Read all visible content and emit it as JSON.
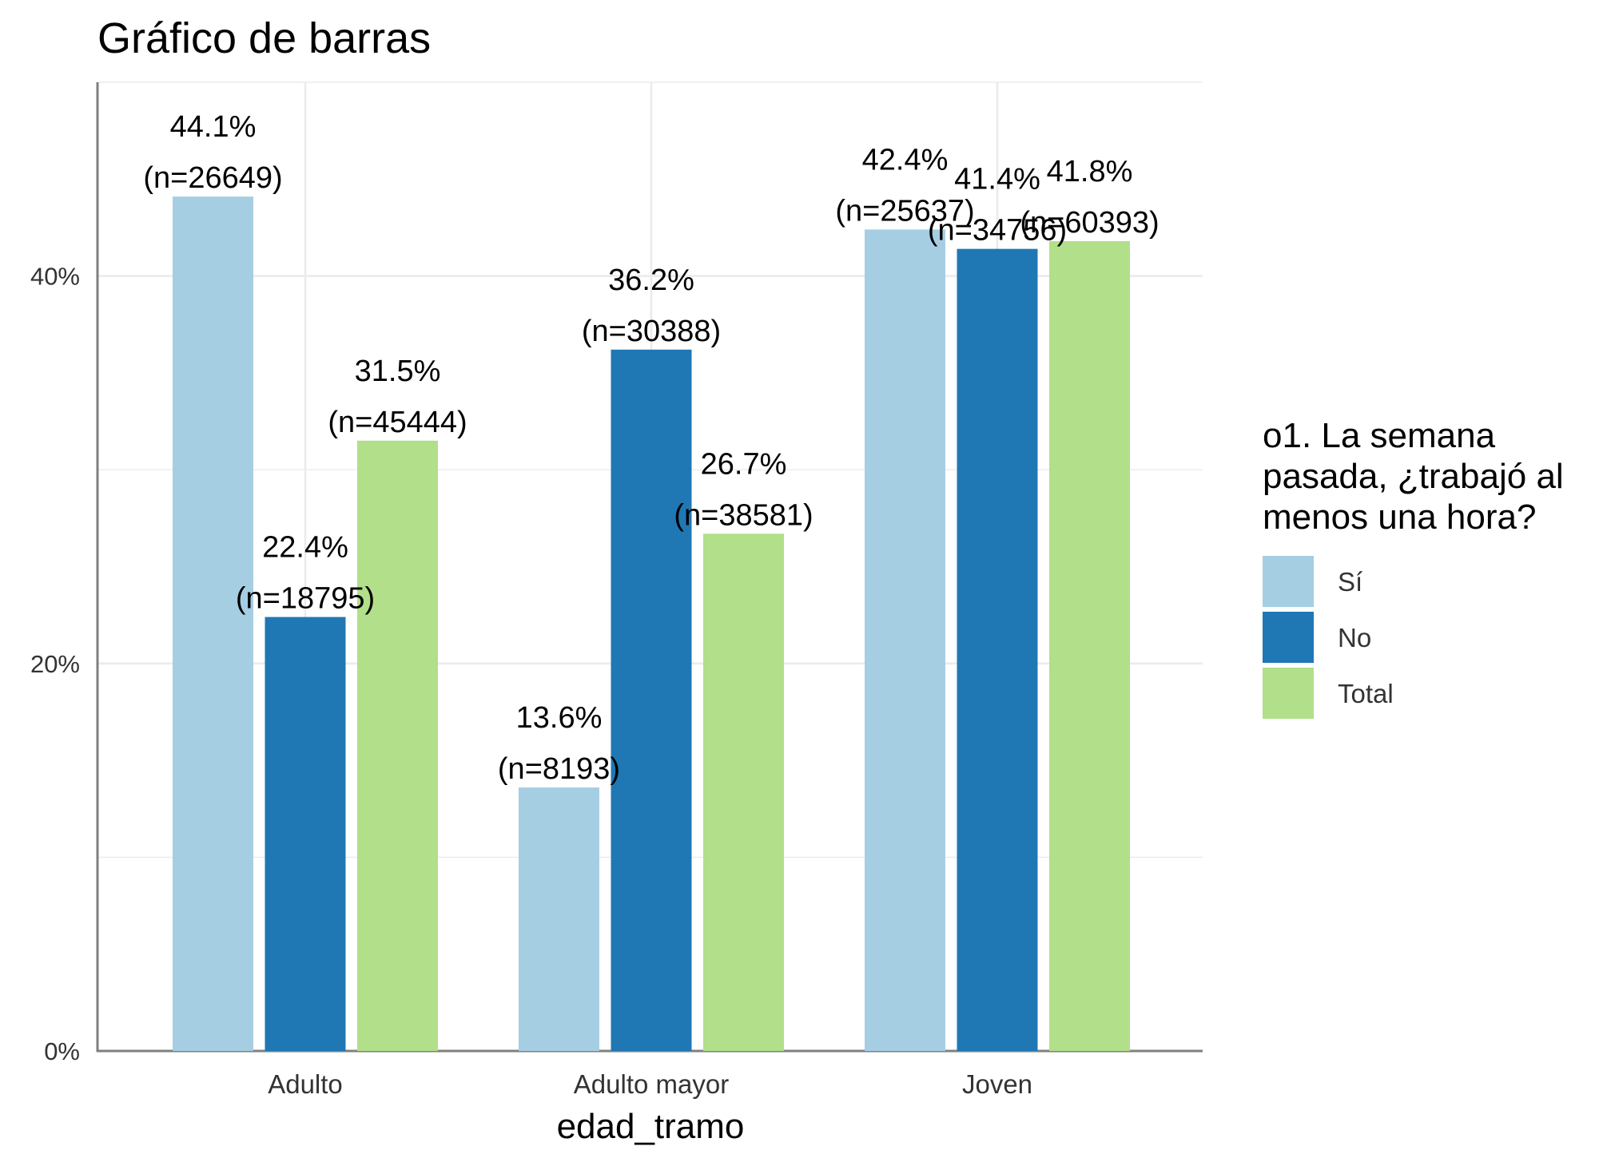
{
  "chart_data": {
    "type": "bar",
    "title": "Gráfico de barras",
    "xlabel": "edad_tramo",
    "ylabel": "",
    "ylim": [
      0,
      50
    ],
    "y_ticks": [
      0,
      20,
      40
    ],
    "y_tick_labels": [
      "0%",
      "20%",
      "40%"
    ],
    "categories": [
      "Adulto",
      "Adulto mayor",
      "Joven"
    ],
    "series": [
      {
        "name": "Sí",
        "color": "#a6cee3",
        "values": [
          44.1,
          13.6,
          42.4
        ],
        "labels": [
          "44.1%",
          "13.6%",
          "42.4%"
        ],
        "n_labels": [
          "(n=26649)",
          "(n=8193)",
          "(n=25637)"
        ]
      },
      {
        "name": "No",
        "color": "#1f78b4",
        "values": [
          22.4,
          36.2,
          41.4
        ],
        "labels": [
          "22.4%",
          "36.2%",
          "41.4%"
        ],
        "n_labels": [
          "(n=18795)",
          "(n=30388)",
          "(n=34756)"
        ]
      },
      {
        "name": "Total",
        "color": "#b2df8a",
        "values": [
          31.5,
          26.7,
          41.8
        ],
        "labels": [
          "31.5%",
          "26.7%",
          "41.8%"
        ],
        "n_labels": [
          "(n=45444)",
          "(n=38581)",
          "(n=60393)"
        ]
      }
    ],
    "legend": {
      "title_lines": [
        "o1. La semana",
        "pasada, ¿trabajó al",
        "menos una hora?"
      ],
      "placement": "right"
    },
    "grid": true
  }
}
